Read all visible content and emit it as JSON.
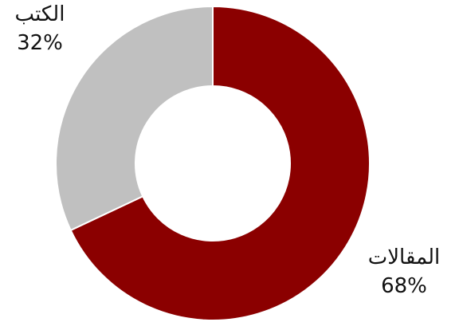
{
  "chart_data": {
    "type": "pie",
    "donut": true,
    "categories": [
      "المقالات",
      "الكتب"
    ],
    "values": [
      68,
      32
    ],
    "value_labels": [
      "68%",
      "32%"
    ],
    "colors": [
      "#8b0000",
      "#c0c0c0"
    ],
    "legend": "none"
  }
}
